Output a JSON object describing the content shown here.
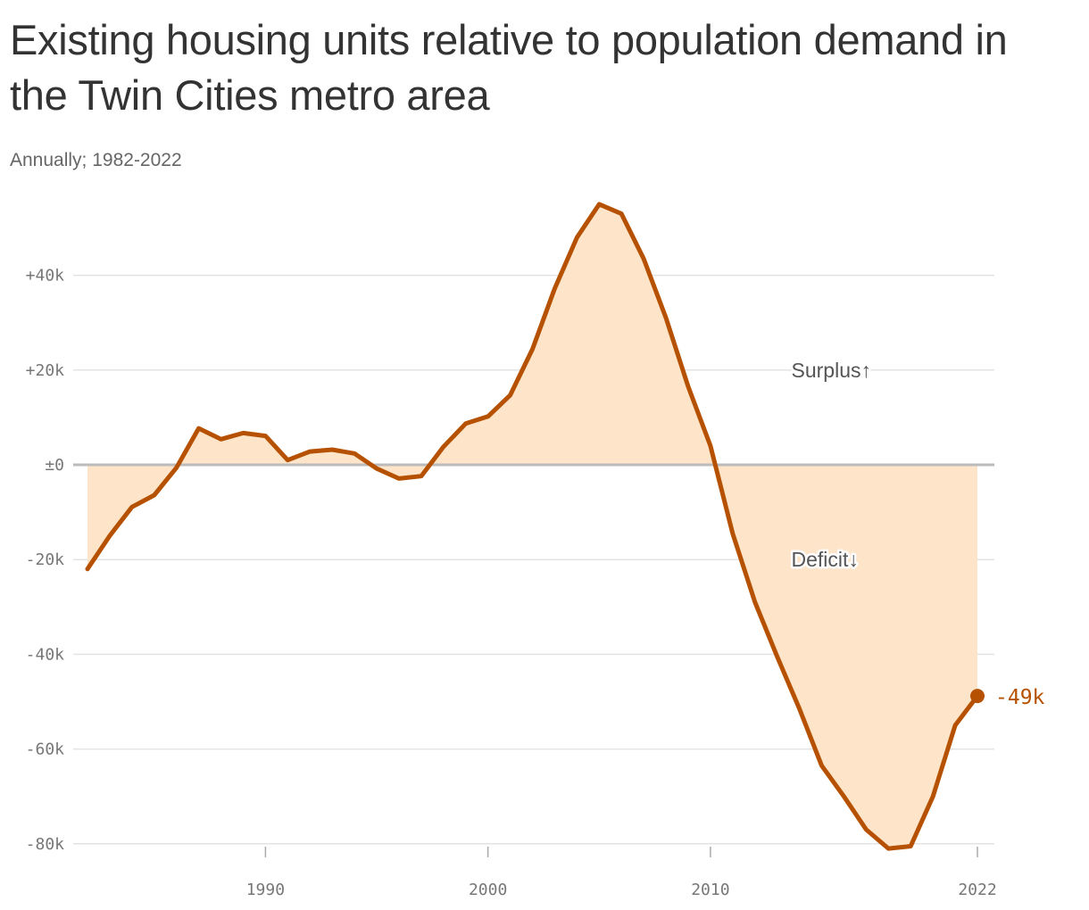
{
  "title": "Existing housing units relative to population demand in the Twin Cities metro area",
  "subtitle": "Annually; 1982-2022",
  "colors": {
    "line": "#b55100",
    "fill": "#fee4c9",
    "zero_line": "#bbbbbb",
    "grid": "#e3e3e3"
  },
  "chart_data": {
    "type": "area",
    "x": [
      1982,
      1983,
      1984,
      1985,
      1986,
      1987,
      1988,
      1989,
      1990,
      1991,
      1992,
      1993,
      1994,
      1995,
      1996,
      1997,
      1998,
      1999,
      2000,
      2001,
      2002,
      2003,
      2004,
      2005,
      2006,
      2007,
      2008,
      2009,
      2010,
      2011,
      2012,
      2013,
      2014,
      2015,
      2016,
      2017,
      2018,
      2019,
      2020,
      2021,
      2022
    ],
    "series": [
      {
        "values": [
          -22000,
          -15000,
          -8900,
          -6400,
          -600,
          7700,
          5400,
          6700,
          6100,
          1000,
          2800,
          3200,
          2400,
          -800,
          -2900,
          -2400,
          3800,
          8700,
          10200,
          14700,
          24400,
          37200,
          48000,
          55000,
          53000,
          43500,
          31000,
          16500,
          4000,
          -14500,
          -29000,
          -40500,
          -51500,
          -63500,
          -70000,
          -77000,
          -81000,
          -80500,
          -70000,
          -55000,
          -48800
        ]
      }
    ],
    "xlim": [
      1982,
      2022
    ],
    "ylim": [
      -80000,
      55000
    ],
    "yticks": [
      40000,
      20000,
      0,
      -20000,
      -40000,
      -60000,
      -80000
    ],
    "ytick_labels": [
      "+40k",
      "+20k",
      "±0",
      "-20k",
      "-40k",
      "-60k",
      "-80k"
    ],
    "xticks": [
      1990,
      2000,
      2010,
      2022
    ],
    "xtick_labels": [
      "1990",
      "2000",
      "2010",
      "2022"
    ],
    "grid": true,
    "annotations": [
      {
        "text": "Surplus↑",
        "x": 2015,
        "y": 20000
      },
      {
        "text": "Deficit↓",
        "x": 2015,
        "y": -20000
      }
    ],
    "end_label": "-49k"
  }
}
